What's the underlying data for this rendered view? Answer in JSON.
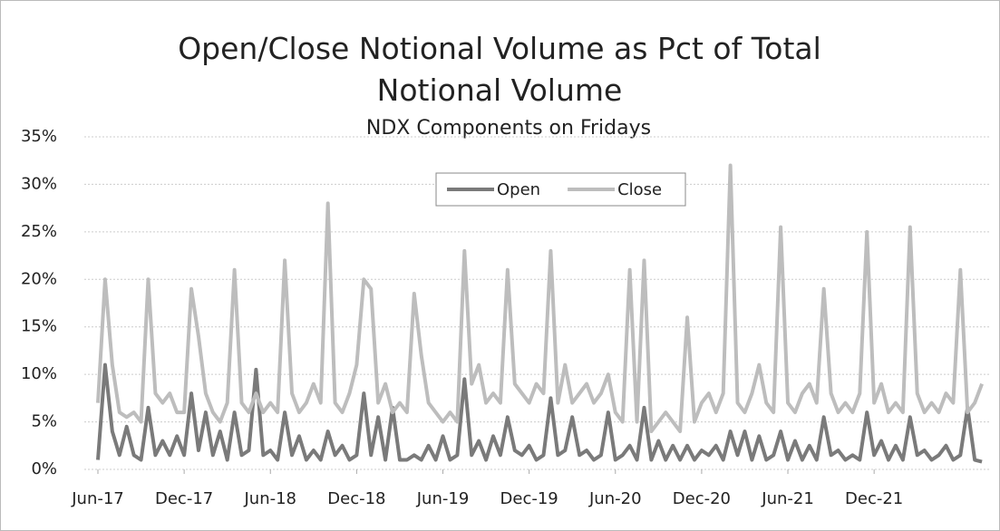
{
  "chart_data": {
    "type": "line",
    "title": "Open/Close Notional Volume as Pct of Total Notional Volume",
    "subtitle": "NDX Components on Fridays",
    "x": [
      0,
      0.5,
      1,
      1.5,
      2,
      2.5,
      3,
      3.5,
      4,
      4.5,
      5,
      5.5,
      6,
      6.5,
      7,
      7.5,
      8,
      8.5,
      9,
      9.5,
      10,
      10.5,
      11,
      11.5,
      12,
      12.5,
      13,
      13.5,
      14,
      14.5,
      15,
      15.5,
      16,
      16.5,
      17,
      17.5,
      18,
      18.5,
      19,
      19.5,
      20,
      20.5,
      21,
      21.5,
      22,
      22.5,
      23,
      23.5,
      24,
      24.5,
      25,
      25.5,
      26,
      26.5,
      27,
      27.5,
      28,
      28.5,
      29,
      29.5,
      30,
      30.5,
      31,
      31.5,
      32,
      32.5,
      33,
      33.5,
      34,
      34.5,
      35,
      35.5,
      36,
      36.5,
      37,
      37.5,
      38,
      38.5,
      39,
      39.5,
      40,
      40.5,
      41,
      41.5,
      42,
      42.5,
      43,
      43.5,
      44,
      44.5,
      45,
      45.5,
      46,
      46.5,
      47,
      47.5,
      48,
      48.5,
      49,
      49.5,
      50,
      50.5,
      51,
      51.5,
      52,
      52.5,
      53,
      53.5,
      54,
      54.5,
      55,
      55.5,
      56,
      56.5,
      57,
      57.5,
      58,
      58.5,
      59,
      59.5,
      60,
      60.5,
      61,
      61.5
    ],
    "series": [
      {
        "name": "Open",
        "color": "#7a7a7a",
        "values": [
          1,
          11,
          4,
          1.5,
          4.5,
          1.5,
          1,
          6.5,
          1.5,
          3,
          1.5,
          3.5,
          1.5,
          8,
          2,
          6,
          1.5,
          4,
          1,
          6,
          1.5,
          2,
          10.5,
          1.5,
          2,
          1,
          6,
          1.5,
          3.5,
          1,
          2,
          1,
          4,
          1.5,
          2.5,
          1,
          1.5,
          8,
          1.5,
          5.5,
          1,
          6.5,
          1,
          1,
          1.5,
          1,
          2.5,
          1,
          3.5,
          1,
          1.5,
          9.5,
          1.5,
          3,
          1,
          3.5,
          1.5,
          5.5,
          2,
          1.5,
          2.5,
          1,
          1.5,
          7.5,
          1.5,
          2,
          5.5,
          1.5,
          2,
          1,
          1.5,
          6,
          1,
          1.5,
          2.5,
          1,
          6.5,
          1,
          3,
          1,
          2.5,
          1,
          2.5,
          1,
          2,
          1.5,
          2.5,
          1,
          4,
          1.5,
          4,
          1,
          3.5,
          1,
          1.5,
          4,
          1,
          3,
          1,
          2.5,
          1,
          5.5,
          1.5,
          2,
          1,
          1.5,
          1,
          6,
          1.5,
          3,
          1,
          2.5,
          1,
          5.5,
          1.5,
          2,
          1,
          1.5,
          2.5,
          1,
          1.5,
          6.5,
          1,
          0.8
        ]
      },
      {
        "name": "Close",
        "color": "#bdbdbd",
        "values": [
          7,
          20,
          11,
          6,
          5.5,
          6,
          5,
          20,
          8,
          7,
          8,
          6,
          6,
          19,
          14,
          8,
          6,
          5,
          7,
          21,
          7,
          6,
          8,
          6,
          7,
          6,
          22,
          8,
          6,
          7,
          9,
          7,
          28,
          7,
          6,
          8,
          11,
          20,
          19,
          7,
          9,
          6,
          7,
          6,
          18.5,
          12,
          7,
          6,
          5,
          6,
          5,
          23,
          9,
          11,
          7,
          8,
          7,
          21,
          9,
          8,
          7,
          9,
          8,
          23,
          7,
          11,
          7,
          8,
          9,
          7,
          8,
          10,
          6,
          5,
          21,
          5,
          22,
          4,
          5,
          6,
          5,
          4,
          16,
          5,
          7,
          8,
          6,
          8,
          32,
          7,
          6,
          8,
          11,
          7,
          6,
          25.5,
          7,
          6,
          8,
          9,
          7,
          19,
          8,
          6,
          7,
          6,
          8,
          25,
          7,
          9,
          6,
          7,
          6,
          25.5,
          8,
          6,
          7,
          6,
          8,
          7,
          21,
          6,
          7,
          9
        ]
      }
    ],
    "xlim": [
      0,
      62
    ],
    "xticks": [
      {
        "value": 0,
        "label": "Jun-17"
      },
      {
        "value": 6,
        "label": "Dec-17"
      },
      {
        "value": 12,
        "label": "Jun-18"
      },
      {
        "value": 18,
        "label": "Dec-18"
      },
      {
        "value": 24,
        "label": "Jun-19"
      },
      {
        "value": 30,
        "label": "Dec-19"
      },
      {
        "value": 36,
        "label": "Jun-20"
      },
      {
        "value": 42,
        "label": "Dec-20"
      },
      {
        "value": 48,
        "label": "Jun-21"
      },
      {
        "value": 54,
        "label": "Dec-21"
      }
    ],
    "ylim": [
      0,
      35
    ],
    "yticks": [
      {
        "value": 0,
        "label": "0%"
      },
      {
        "value": 5,
        "label": "5%"
      },
      {
        "value": 10,
        "label": "10%"
      },
      {
        "value": 15,
        "label": "15%"
      },
      {
        "value": 20,
        "label": "20%"
      },
      {
        "value": 25,
        "label": "25%"
      },
      {
        "value": 30,
        "label": "30%"
      },
      {
        "value": 35,
        "label": "35%"
      }
    ],
    "grid": true,
    "legend": "top"
  }
}
